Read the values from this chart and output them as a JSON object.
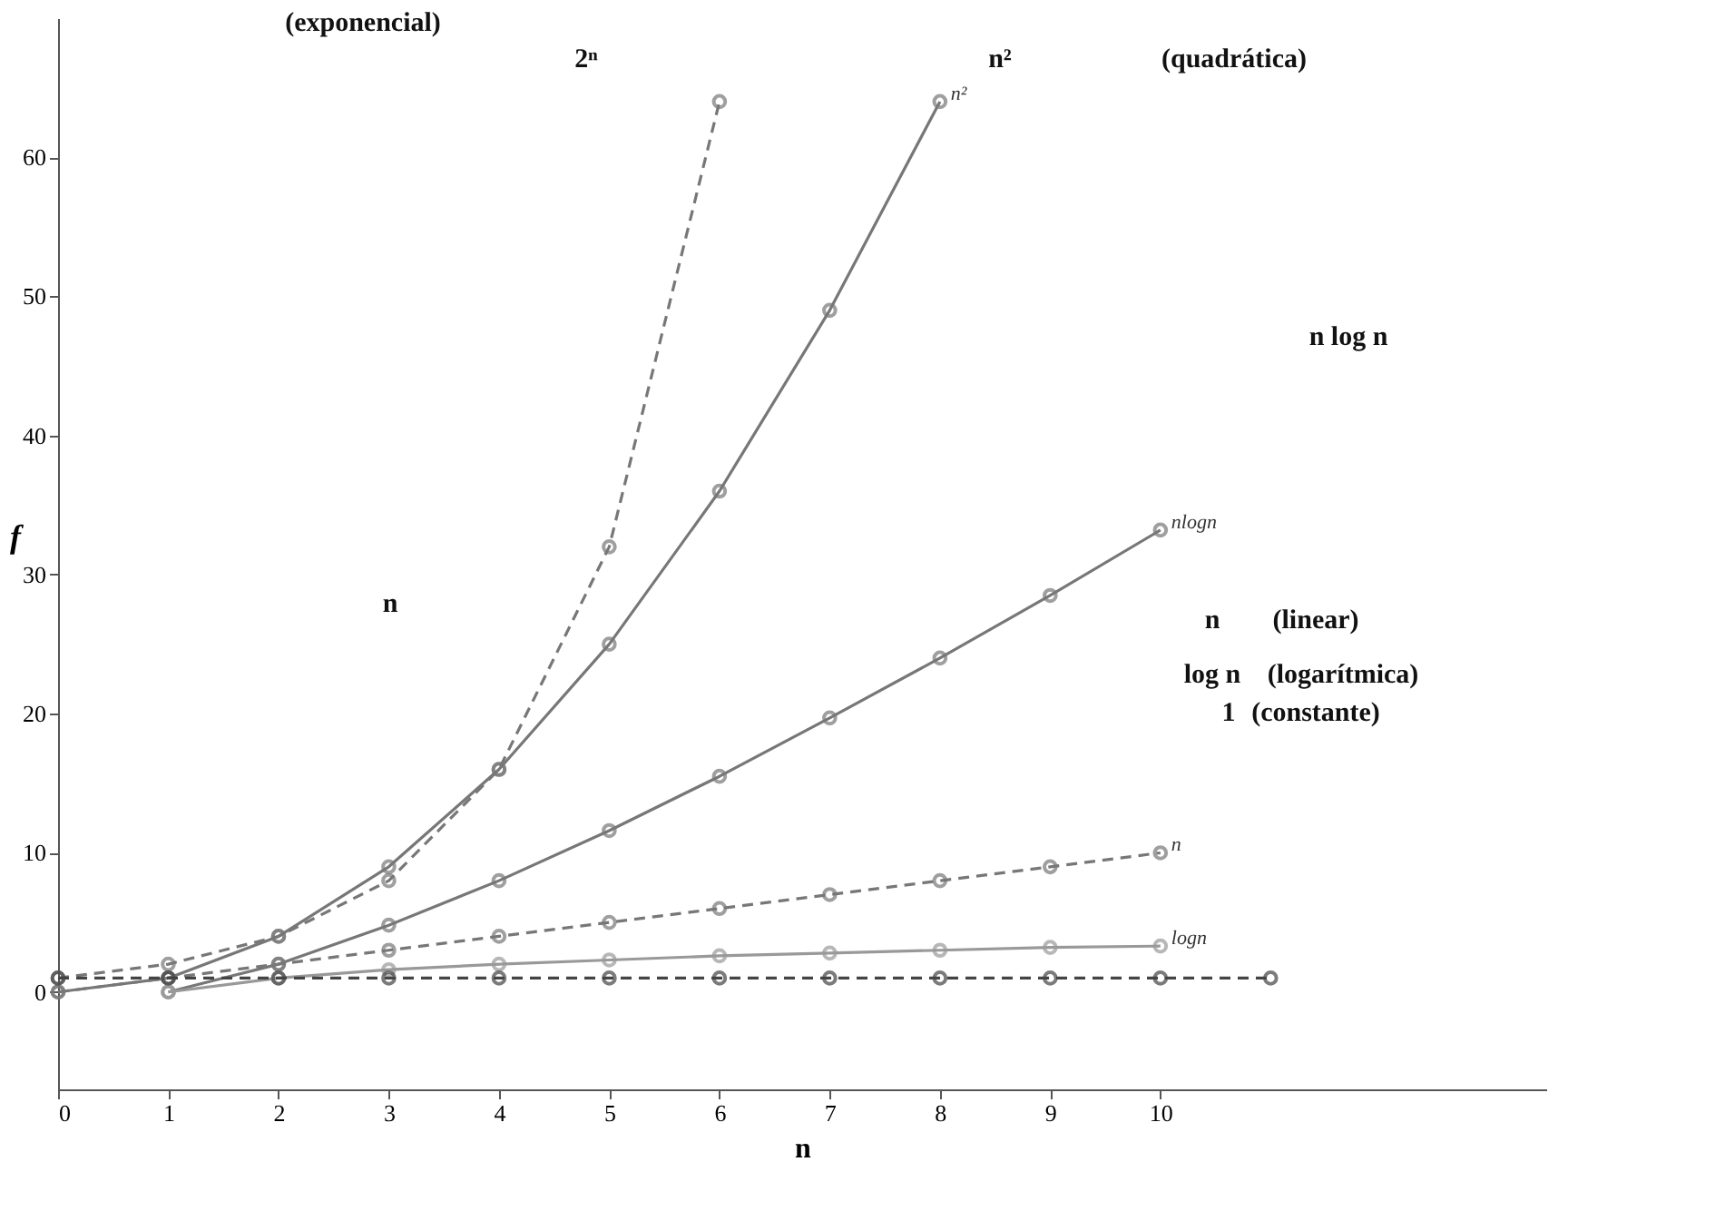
{
  "chart_data": {
    "type": "line",
    "xlabel": "n",
    "ylabel": "f",
    "xlim": [
      0,
      13.5
    ],
    "ylim": [
      -7,
      70
    ],
    "xticks": [
      0,
      1,
      2,
      3,
      4,
      5,
      6,
      7,
      8,
      9,
      10
    ],
    "yticks": [
      0,
      10,
      20,
      30,
      40,
      50,
      60
    ],
    "grid": false,
    "marker": "circle",
    "series": [
      {
        "color": "#777777",
        "line_style": "dashed",
        "x": [
          0,
          1,
          2,
          3,
          4,
          5,
          6
        ],
        "values": [
          1,
          2,
          4,
          8,
          16,
          32,
          64
        ]
      },
      {
        "name": "n²",
        "color": "#777777",
        "line_style": "solid",
        "x": [
          0,
          1,
          2,
          3,
          4,
          5,
          6,
          7,
          8
        ],
        "values": [
          0,
          1,
          4,
          9,
          16,
          25,
          36,
          49,
          64
        ]
      },
      {
        "name": "nlogn",
        "color": "#777777",
        "line_style": "solid",
        "x": [
          1,
          2,
          3,
          4,
          5,
          6,
          7,
          8,
          9,
          10
        ],
        "values": [
          0,
          2,
          4.8,
          8,
          11.6,
          15.5,
          19.7,
          24,
          28.5,
          33.2
        ]
      },
      {
        "name": "n",
        "color": "#777777",
        "line_style": "dashed",
        "x": [
          0,
          1,
          2,
          3,
          4,
          5,
          6,
          7,
          8,
          9,
          10
        ],
        "values": [
          0,
          1,
          2,
          3,
          4,
          5,
          6,
          7,
          8,
          9,
          10
        ]
      },
      {
        "name": "logn",
        "color": "#999999",
        "line_style": "solid",
        "x": [
          1,
          2,
          3,
          4,
          5,
          6,
          7,
          8,
          9,
          10
        ],
        "values": [
          0,
          1,
          1.6,
          2,
          2.3,
          2.6,
          2.8,
          3,
          3.2,
          3.3
        ]
      },
      {
        "color": "#444444",
        "line_style": "dashed",
        "x": [
          0,
          1,
          2,
          3,
          4,
          5,
          6,
          7,
          8,
          9,
          10,
          11
        ],
        "values": [
          1,
          1,
          1,
          1,
          1,
          1,
          1,
          1,
          1,
          1,
          1,
          1
        ]
      }
    ],
    "annotations": [
      "(exponencial)",
      "2ⁿ",
      "n²",
      "(quadrática)",
      "n log n",
      "n",
      "n",
      "(linear)",
      "log n",
      "(logarítmica)",
      "1",
      "(constante)"
    ]
  }
}
